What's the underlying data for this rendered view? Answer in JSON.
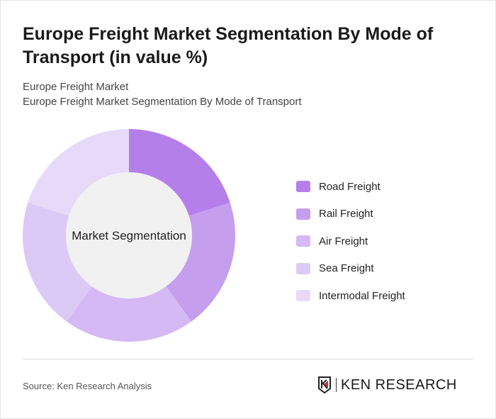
{
  "title": "Europe Freight Market Segmentation By Mode of Transport (in value %)",
  "subtitle1": "Europe Freight Market",
  "subtitle2": "Europe Freight Market Segmentation By Mode of Transport",
  "source": "Source: Ken Research Analysis",
  "logo_text": "KEN RESEARCH",
  "chart_data": {
    "type": "pie",
    "donut": true,
    "center_label": "Market Segmentation",
    "categories": [
      "Road Freight",
      "Rail Freight",
      "Air Freight",
      "Sea Freight",
      "Intermodal Freight"
    ],
    "values": [
      20,
      20,
      20,
      20,
      20
    ],
    "colors": [
      "#b57fea",
      "#c59eee",
      "#d5b9f4",
      "#dccaf6",
      "#e7daf9"
    ],
    "legend_position": "right"
  }
}
